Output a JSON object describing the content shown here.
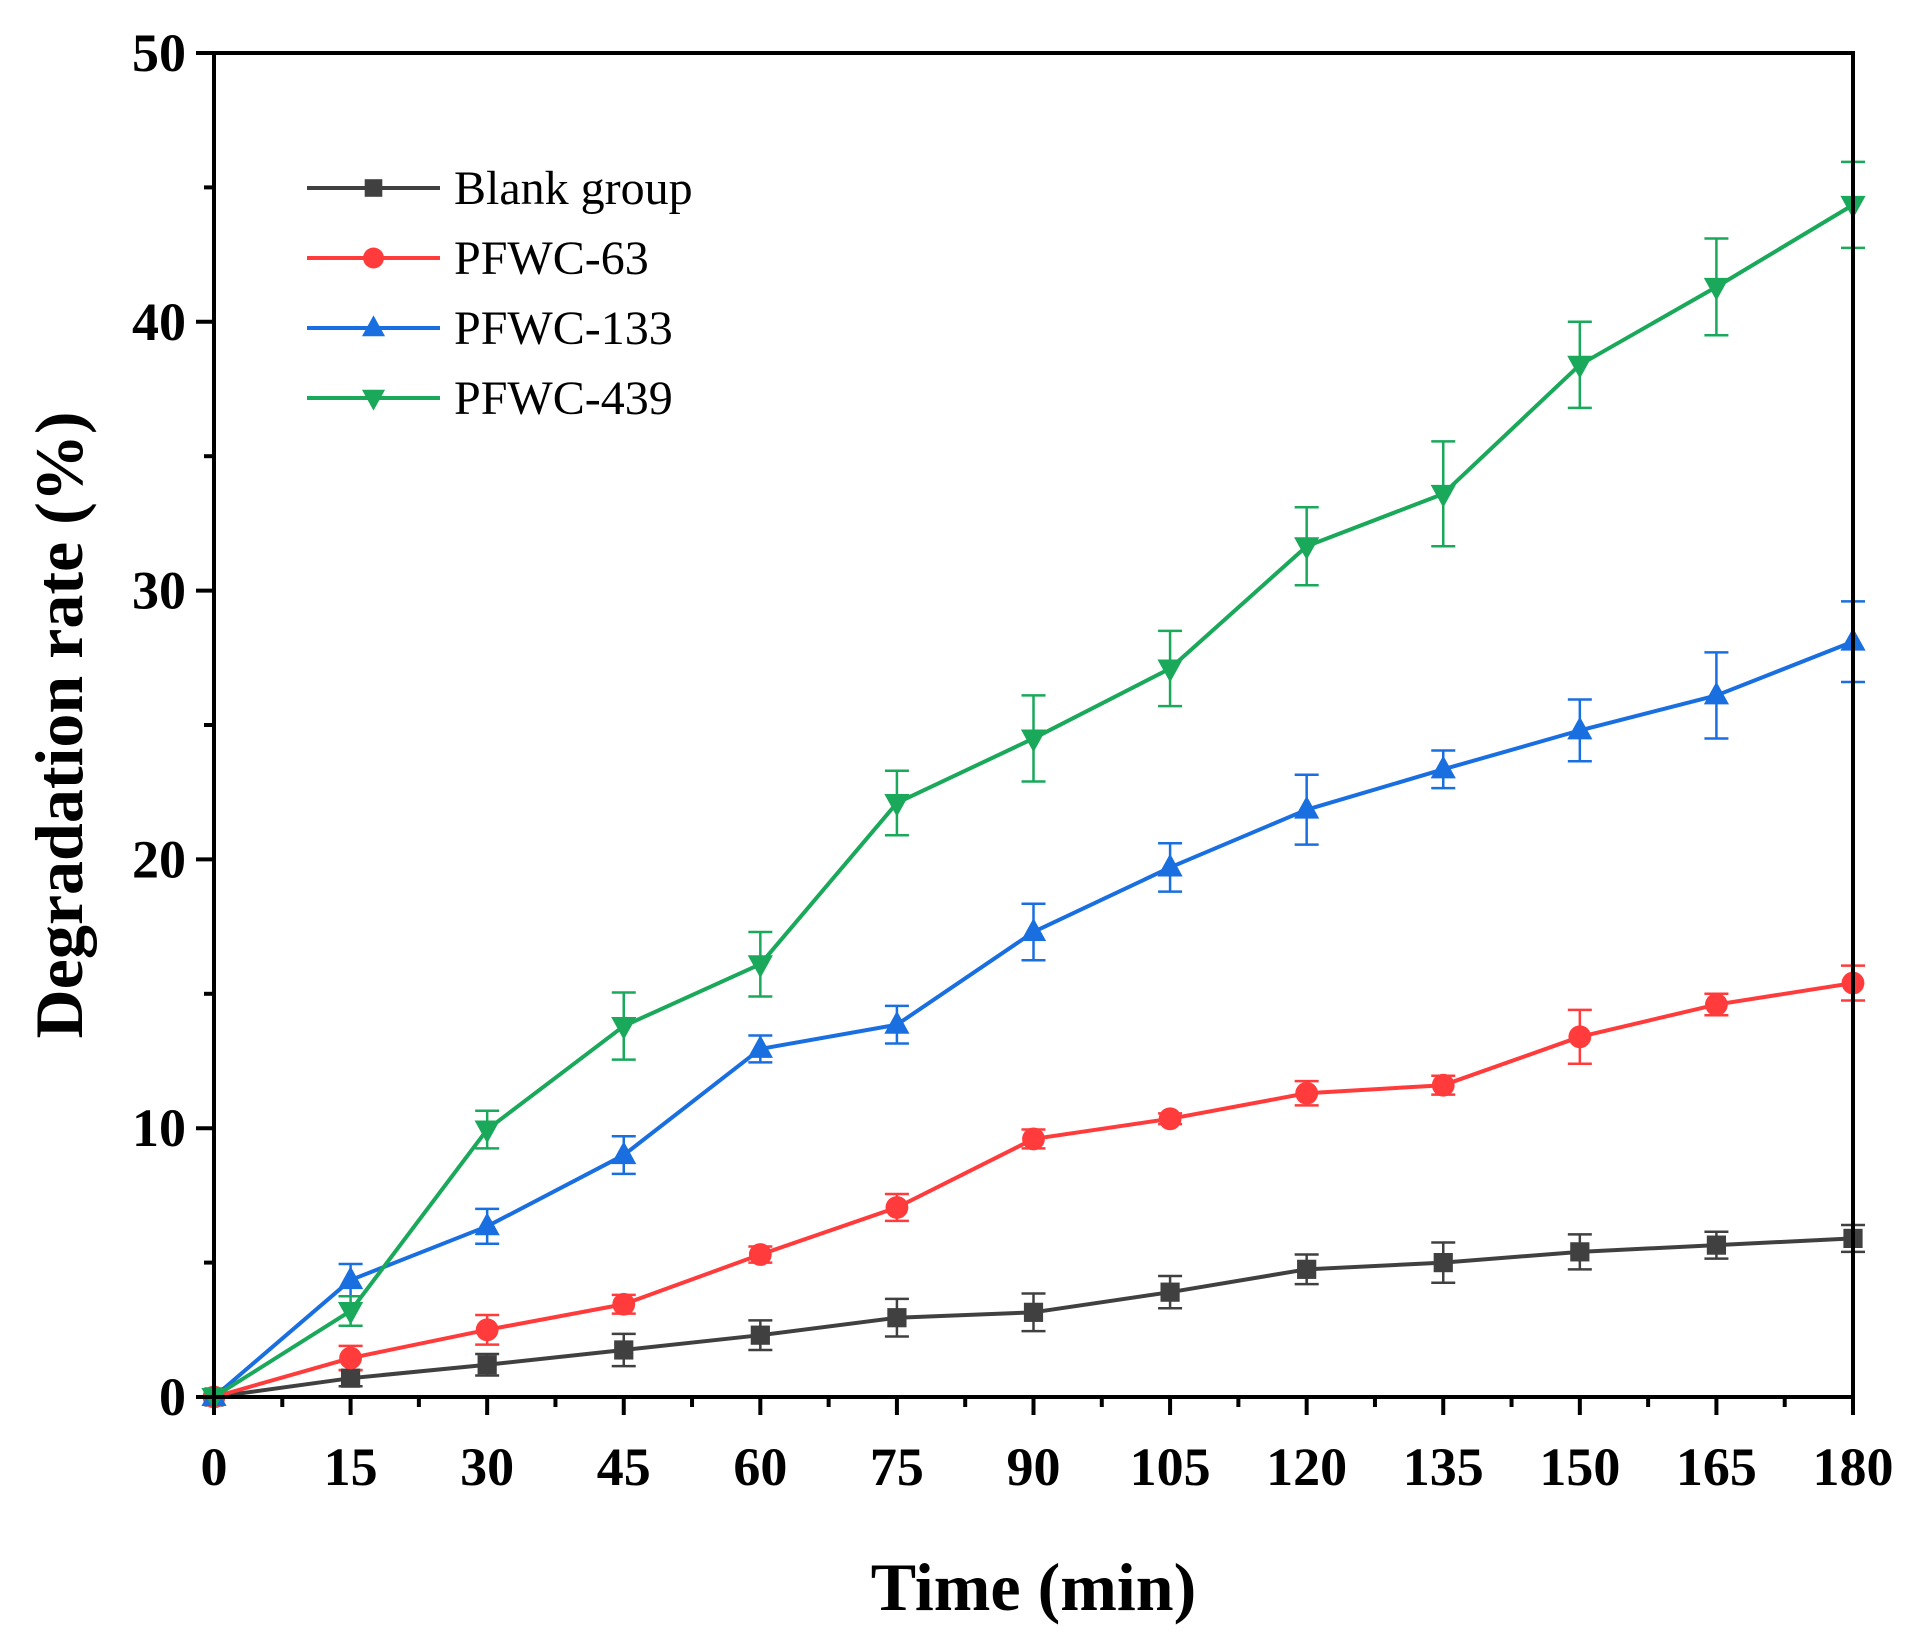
{
  "chart_data": {
    "type": "line",
    "title": "",
    "xlabel": "Time (min)",
    "ylabel": "Degradation rate (%)",
    "xlim": [
      0,
      180
    ],
    "ylim": [
      0,
      50
    ],
    "x": [
      0,
      15,
      30,
      45,
      60,
      75,
      90,
      105,
      120,
      135,
      150,
      165,
      180
    ],
    "x_ticks": [
      "0",
      "15",
      "30",
      "45",
      "60",
      "75",
      "90",
      "105",
      "120",
      "135",
      "150",
      "165",
      "180"
    ],
    "y_ticks": [
      "0",
      "10",
      "20",
      "30",
      "40",
      "50"
    ],
    "grid": false,
    "legend_position": "top-left",
    "series": [
      {
        "name": "Blank group",
        "color": "#404040",
        "marker": "square",
        "values": [
          0,
          0.7,
          1.2,
          1.75,
          2.3,
          2.95,
          3.15,
          3.9,
          4.75,
          5.0,
          5.4,
          5.65,
          5.9
        ],
        "errors": [
          0,
          0.3,
          0.4,
          0.6,
          0.55,
          0.7,
          0.7,
          0.6,
          0.55,
          0.75,
          0.65,
          0.5,
          0.5
        ]
      },
      {
        "name": "PFWC-63",
        "color": "#ff3b3b",
        "marker": "circle",
        "values": [
          0,
          1.45,
          2.5,
          3.45,
          5.3,
          7.05,
          9.6,
          10.35,
          11.3,
          11.6,
          13.4,
          14.6,
          15.4
        ],
        "errors": [
          0,
          0.45,
          0.55,
          0.35,
          0.3,
          0.5,
          0.35,
          0.2,
          0.45,
          0.35,
          1.0,
          0.4,
          0.65
        ]
      },
      {
        "name": "PFWC-133",
        "color": "#1a6fe0",
        "marker": "triangle-up",
        "values": [
          0,
          4.35,
          6.35,
          9.0,
          12.95,
          13.85,
          17.3,
          19.7,
          21.85,
          23.35,
          24.8,
          26.1,
          28.1
        ],
        "errors": [
          0,
          0.6,
          0.65,
          0.7,
          0.5,
          0.7,
          1.05,
          0.9,
          1.3,
          0.7,
          1.15,
          1.6,
          1.5
        ]
      },
      {
        "name": "PFWC-439",
        "color": "#1aa85a",
        "marker": "triangle-down",
        "values": [
          0,
          3.2,
          9.95,
          13.8,
          16.1,
          22.1,
          24.5,
          27.1,
          31.65,
          33.6,
          38.4,
          41.3,
          44.35
        ],
        "errors": [
          0,
          0.55,
          0.7,
          1.25,
          1.2,
          1.2,
          1.6,
          1.4,
          1.45,
          1.95,
          1.6,
          1.8,
          1.6
        ]
      }
    ]
  }
}
